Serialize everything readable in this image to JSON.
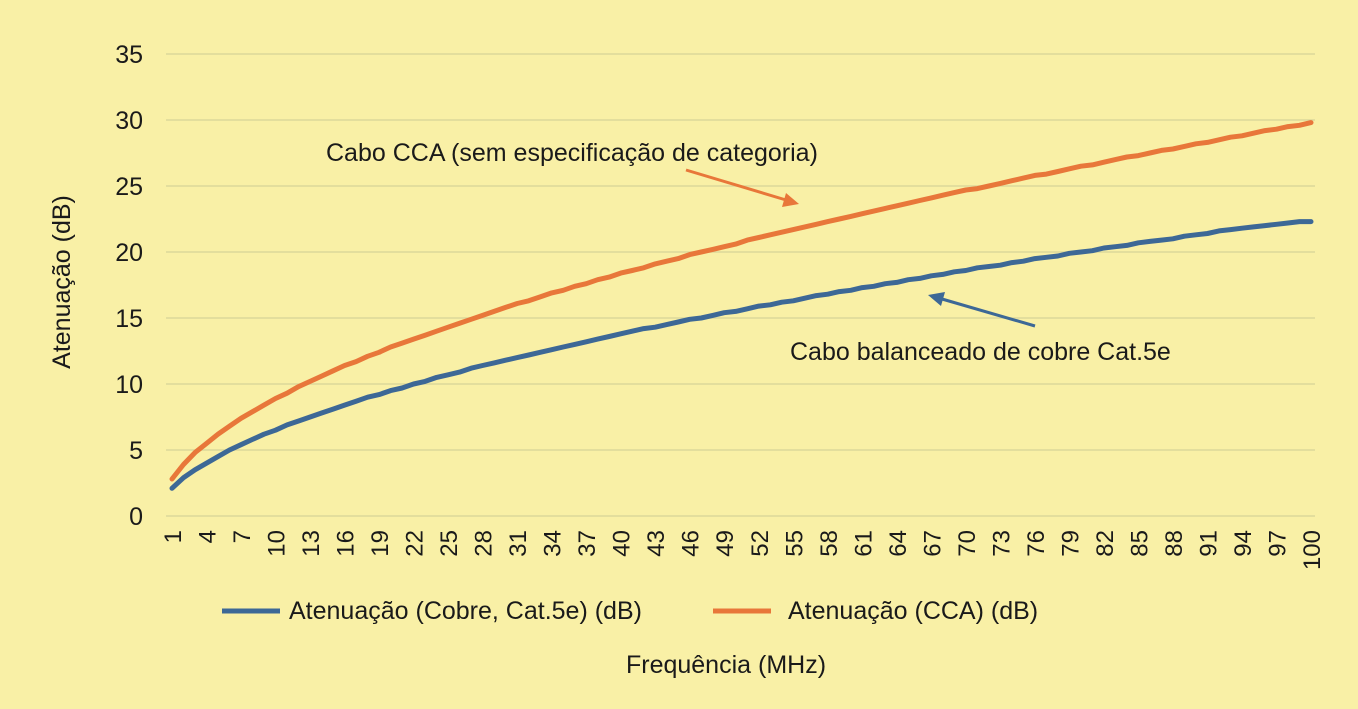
{
  "chart_data": {
    "type": "line",
    "title": "",
    "xlabel": "Frequência (MHz)",
    "ylabel": "Atenuação (dB)",
    "ylim": [
      0,
      35
    ],
    "yticks": [
      0,
      5,
      10,
      15,
      20,
      25,
      30,
      35
    ],
    "x": [
      1,
      2,
      3,
      4,
      5,
      6,
      7,
      8,
      9,
      10,
      11,
      12,
      13,
      14,
      15,
      16,
      17,
      18,
      19,
      20,
      21,
      22,
      23,
      24,
      25,
      26,
      27,
      28,
      29,
      30,
      31,
      32,
      33,
      34,
      35,
      36,
      37,
      38,
      39,
      40,
      41,
      42,
      43,
      44,
      45,
      46,
      47,
      48,
      49,
      50,
      51,
      52,
      53,
      54,
      55,
      56,
      57,
      58,
      59,
      60,
      61,
      62,
      63,
      64,
      65,
      66,
      67,
      68,
      69,
      70,
      71,
      72,
      73,
      74,
      75,
      76,
      77,
      78,
      79,
      80,
      81,
      82,
      83,
      84,
      85,
      86,
      87,
      88,
      89,
      90,
      91,
      92,
      93,
      94,
      95,
      96,
      97,
      98,
      99,
      100
    ],
    "xtick_labels": [
      "1",
      "4",
      "7",
      "10",
      "13",
      "16",
      "19",
      "22",
      "25",
      "28",
      "31",
      "34",
      "37",
      "40",
      "43",
      "46",
      "49",
      "52",
      "55",
      "58",
      "61",
      "64",
      "67",
      "70",
      "73",
      "76",
      "79",
      "82",
      "85",
      "88",
      "91",
      "94",
      "97",
      "100"
    ],
    "grid": true,
    "legend_position": "bottom",
    "series": [
      {
        "name": "Atenuação (Cobre, Cat.5e) (dB)",
        "color": "#3d6896",
        "values": [
          2.1,
          2.9,
          3.5,
          4.0,
          4.5,
          5.0,
          5.4,
          5.8,
          6.2,
          6.5,
          6.9,
          7.2,
          7.5,
          7.8,
          8.1,
          8.4,
          8.7,
          9.0,
          9.2,
          9.5,
          9.7,
          10.0,
          10.2,
          10.5,
          10.7,
          10.9,
          11.2,
          11.4,
          11.6,
          11.8,
          12.0,
          12.2,
          12.4,
          12.6,
          12.8,
          13.0,
          13.2,
          13.4,
          13.6,
          13.8,
          14.0,
          14.2,
          14.3,
          14.5,
          14.7,
          14.9,
          15.0,
          15.2,
          15.4,
          15.5,
          15.7,
          15.9,
          16.0,
          16.2,
          16.3,
          16.5,
          16.7,
          16.8,
          17.0,
          17.1,
          17.3,
          17.4,
          17.6,
          17.7,
          17.9,
          18.0,
          18.2,
          18.3,
          18.5,
          18.6,
          18.8,
          18.9,
          19.0,
          19.2,
          19.3,
          19.5,
          19.6,
          19.7,
          19.9,
          20.0,
          20.1,
          20.3,
          20.4,
          20.5,
          20.7,
          20.8,
          20.9,
          21.0,
          21.2,
          21.3,
          21.4,
          21.6,
          21.7,
          21.8,
          21.9,
          22.0,
          22.1,
          22.2,
          22.3,
          22.3
        ]
      },
      {
        "name": "Atenuação (CCA) (dB)",
        "color": "#e8773a",
        "values": [
          2.8,
          3.9,
          4.8,
          5.5,
          6.2,
          6.8,
          7.4,
          7.9,
          8.4,
          8.9,
          9.3,
          9.8,
          10.2,
          10.6,
          11.0,
          11.4,
          11.7,
          12.1,
          12.4,
          12.8,
          13.1,
          13.4,
          13.7,
          14.0,
          14.3,
          14.6,
          14.9,
          15.2,
          15.5,
          15.8,
          16.1,
          16.3,
          16.6,
          16.9,
          17.1,
          17.4,
          17.6,
          17.9,
          18.1,
          18.4,
          18.6,
          18.8,
          19.1,
          19.3,
          19.5,
          19.8,
          20.0,
          20.2,
          20.4,
          20.6,
          20.9,
          21.1,
          21.3,
          21.5,
          21.7,
          21.9,
          22.1,
          22.3,
          22.5,
          22.7,
          22.9,
          23.1,
          23.3,
          23.5,
          23.7,
          23.9,
          24.1,
          24.3,
          24.5,
          24.7,
          24.8,
          25.0,
          25.2,
          25.4,
          25.6,
          25.8,
          25.9,
          26.1,
          26.3,
          26.5,
          26.6,
          26.8,
          27.0,
          27.2,
          27.3,
          27.5,
          27.7,
          27.8,
          28.0,
          28.2,
          28.3,
          28.5,
          28.7,
          28.8,
          29.0,
          29.2,
          29.3,
          29.5,
          29.6,
          29.8
        ]
      }
    ],
    "annotations": [
      {
        "id": "cca",
        "text": "Cabo CCA (sem especificação de categoria)",
        "color": "#e8773a"
      },
      {
        "id": "cat5e",
        "text": "Cabo balanceado de cobre Cat.5e",
        "color": "#3d6896"
      }
    ]
  }
}
